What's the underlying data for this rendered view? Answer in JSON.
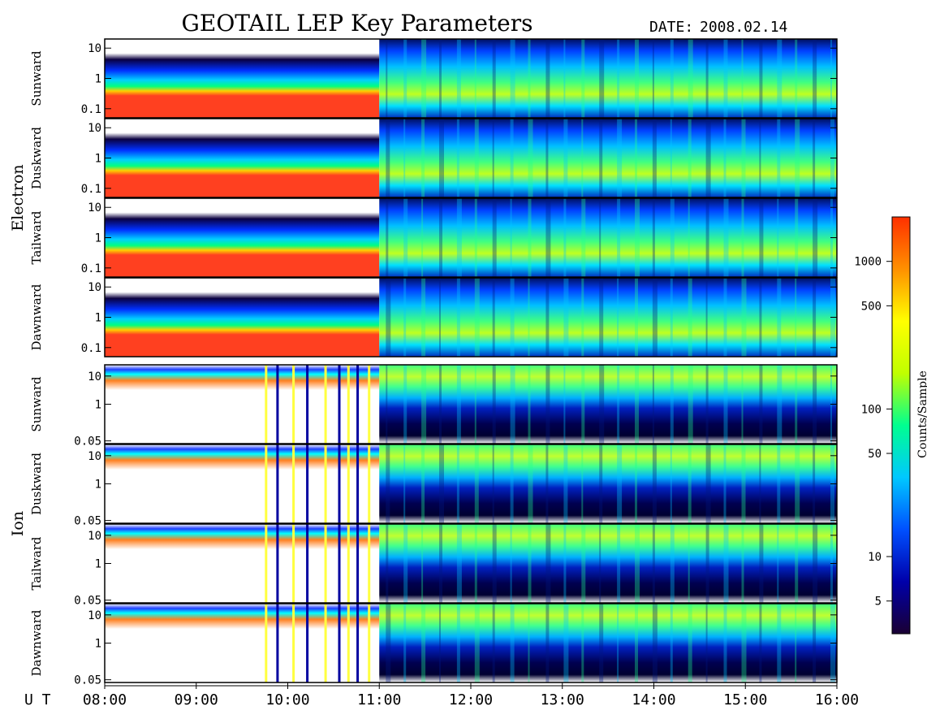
{
  "title": "GEOTAIL LEP Key Parameters",
  "date_label": "DATE:",
  "date_value": "2008.02.14",
  "x_axis_label": "U T",
  "colorbar_label": "Counts/Sample",
  "chart_data": {
    "type": "heatmap",
    "x_ticks": [
      "08:00",
      "09:00",
      "10:00",
      "11:00",
      "12:00",
      "13:00",
      "14:00",
      "15:00",
      "16:00"
    ],
    "xlim": [
      "08:00",
      "16:00"
    ],
    "colorbar": {
      "scale": "log",
      "ticks": [
        5,
        10,
        50,
        100,
        500,
        1000
      ],
      "range": [
        3,
        2000
      ],
      "colormap": [
        "#1a0033",
        "#0000aa",
        "#0050ff",
        "#00c8ff",
        "#00ff90",
        "#c0ff00",
        "#ffff00",
        "#ff9000",
        "#ff3000"
      ]
    },
    "groups": [
      {
        "name": "Electron",
        "y_ticks": [
          "10",
          "1",
          "0.1"
        ],
        "y_tick_values": [
          10,
          1,
          0.1
        ],
        "ylim": [
          0.05,
          20
        ],
        "yscale": "log",
        "panels": [
          {
            "label": "Sunward"
          },
          {
            "label": "Duskward"
          },
          {
            "label": "Tailward"
          },
          {
            "label": "Dawnward"
          }
        ]
      },
      {
        "name": "Ion",
        "y_ticks": [
          "10",
          "1",
          "0.05"
        ],
        "y_tick_values": [
          10,
          1,
          0.05
        ],
        "ylim": [
          0.04,
          25
        ],
        "yscale": "log",
        "panels": [
          {
            "label": "Sunward"
          },
          {
            "label": "Duskward"
          },
          {
            "label": "Tailward"
          },
          {
            "label": "Dawnward"
          }
        ]
      }
    ]
  }
}
